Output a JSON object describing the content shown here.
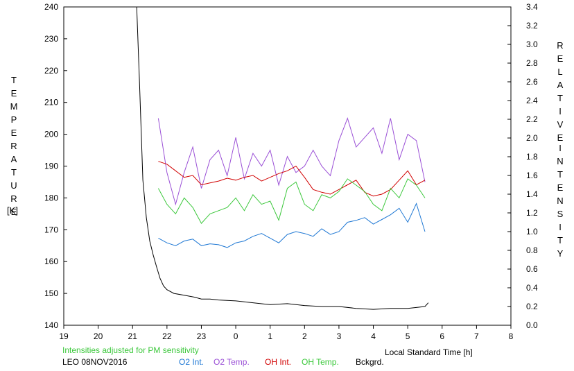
{
  "chart_data": {
    "type": "line",
    "title": "",
    "left_axis": {
      "label_letters": [
        "T",
        "E",
        "M",
        "P",
        "E",
        "R",
        "A",
        "T",
        "U",
        "R",
        "E"
      ],
      "unit": "[K]",
      "ylim": [
        140,
        240
      ],
      "ticks": [
        140,
        150,
        160,
        170,
        180,
        190,
        200,
        210,
        220,
        230,
        240
      ]
    },
    "right_axis": {
      "label_word1": [
        "R",
        "E",
        "L",
        "A",
        "T",
        "I",
        "V",
        "E"
      ],
      "label_word2": [
        "I",
        "N",
        "T",
        "E",
        "N",
        "S",
        "I",
        "T",
        "Y"
      ],
      "ylim": [
        0.0,
        3.4
      ],
      "ticks": [
        "0.0",
        "0.2",
        "0.4",
        "0.6",
        "0.8",
        "1.0",
        "1.2",
        "1.4",
        "1.6",
        "1.8",
        "2.0",
        "2.2",
        "2.4",
        "2.6",
        "2.8",
        "3.0",
        "3.2",
        "3.4"
      ]
    },
    "x_axis": {
      "label": "Local Standard Time [h]",
      "ticks": [
        "19",
        "20",
        "21",
        "22",
        "23",
        "0",
        "1",
        "2",
        "3",
        "4",
        "5",
        "6",
        "7",
        "8"
      ],
      "xlim": [
        19,
        32
      ]
    },
    "grid": false,
    "note": "Intensities adjusted for PM sensitivity",
    "station_date": "LEO 08NOV2016",
    "legend_placement": "bottom",
    "series": [
      {
        "name": "O2 Int.",
        "color": "#1f78d4",
        "axis": "right",
        "x": [
          21.75,
          22.0,
          22.25,
          22.5,
          22.75,
          23.0,
          23.25,
          23.5,
          23.75,
          24.0,
          24.25,
          24.5,
          24.75,
          25.0,
          25.25,
          25.5,
          25.75,
          26.0,
          26.25,
          26.5,
          26.75,
          27.0,
          27.25,
          27.5,
          27.75,
          28.0,
          28.25,
          28.5,
          28.75,
          29.0,
          29.25,
          29.5
        ],
        "values": [
          0.93,
          0.88,
          0.85,
          0.9,
          0.92,
          0.85,
          0.87,
          0.86,
          0.83,
          0.88,
          0.9,
          0.95,
          0.98,
          0.93,
          0.88,
          0.97,
          1.0,
          0.98,
          0.95,
          1.03,
          0.97,
          1.0,
          1.1,
          1.12,
          1.15,
          1.08,
          1.13,
          1.18,
          1.25,
          1.1,
          1.3,
          1.0
        ]
      },
      {
        "name": "O2 Temp.",
        "color": "#9a4fd6",
        "axis": "left",
        "x": [
          21.75,
          22.0,
          22.25,
          22.5,
          22.75,
          23.0,
          23.25,
          23.5,
          23.75,
          24.0,
          24.25,
          24.5,
          24.75,
          25.0,
          25.25,
          25.5,
          25.75,
          26.0,
          26.25,
          26.5,
          26.75,
          27.0,
          27.25,
          27.5,
          27.75,
          28.0,
          28.25,
          28.5,
          28.75,
          29.0,
          29.25,
          29.5
        ],
        "values": [
          205,
          188,
          178,
          188,
          196,
          183,
          192,
          195,
          187,
          199,
          186,
          194,
          190,
          195,
          184,
          193,
          188,
          190,
          195,
          190,
          187,
          198,
          205,
          196,
          199,
          202,
          194,
          205,
          192,
          200,
          198,
          185
        ]
      },
      {
        "name": "OH Int.",
        "color": "#d10000",
        "axis": "right",
        "x": [
          21.75,
          22.0,
          22.25,
          22.5,
          22.75,
          23.0,
          23.25,
          23.5,
          23.75,
          24.0,
          24.25,
          24.5,
          24.75,
          25.0,
          25.25,
          25.5,
          25.75,
          26.0,
          26.25,
          26.5,
          26.75,
          27.0,
          27.25,
          27.5,
          27.75,
          28.0,
          28.25,
          28.5,
          28.75,
          29.0,
          29.25,
          29.5
        ],
        "values": [
          1.75,
          1.72,
          1.65,
          1.58,
          1.6,
          1.5,
          1.52,
          1.54,
          1.57,
          1.55,
          1.58,
          1.6,
          1.54,
          1.58,
          1.62,
          1.65,
          1.7,
          1.58,
          1.45,
          1.42,
          1.4,
          1.45,
          1.5,
          1.55,
          1.42,
          1.38,
          1.4,
          1.45,
          1.55,
          1.65,
          1.5,
          1.55
        ]
      },
      {
        "name": "OH Temp.",
        "color": "#3cc83c",
        "axis": "left",
        "x": [
          21.75,
          22.0,
          22.25,
          22.5,
          22.75,
          23.0,
          23.25,
          23.5,
          23.75,
          24.0,
          24.25,
          24.5,
          24.75,
          25.0,
          25.25,
          25.5,
          25.75,
          26.0,
          26.25,
          26.5,
          26.75,
          27.0,
          27.25,
          27.5,
          27.75,
          28.0,
          28.25,
          28.5,
          28.75,
          29.0,
          29.25,
          29.5
        ],
        "values": [
          183,
          178,
          175,
          180,
          177,
          172,
          175,
          176,
          177,
          180,
          176,
          181,
          178,
          179,
          173,
          183,
          185,
          178,
          176,
          181,
          180,
          182,
          186,
          184,
          182,
          178,
          176,
          183,
          180,
          186,
          184,
          180
        ]
      },
      {
        "name": "Bckgrd.",
        "color": "#000000",
        "axis": "right",
        "x": [
          21.12,
          21.2,
          21.3,
          21.4,
          21.5,
          21.6,
          21.7,
          21.8,
          21.9,
          22.0,
          22.2,
          22.5,
          22.8,
          23.0,
          23.25,
          23.5,
          24.0,
          24.5,
          25.0,
          25.5,
          26.0,
          26.5,
          27.0,
          27.5,
          28.0,
          28.5,
          29.0,
          29.5,
          29.6
        ],
        "values": [
          3.4,
          2.6,
          1.55,
          1.15,
          0.9,
          0.75,
          0.62,
          0.5,
          0.42,
          0.38,
          0.34,
          0.32,
          0.3,
          0.28,
          0.28,
          0.27,
          0.26,
          0.24,
          0.22,
          0.23,
          0.21,
          0.2,
          0.2,
          0.18,
          0.17,
          0.18,
          0.18,
          0.2,
          0.24
        ]
      }
    ]
  }
}
